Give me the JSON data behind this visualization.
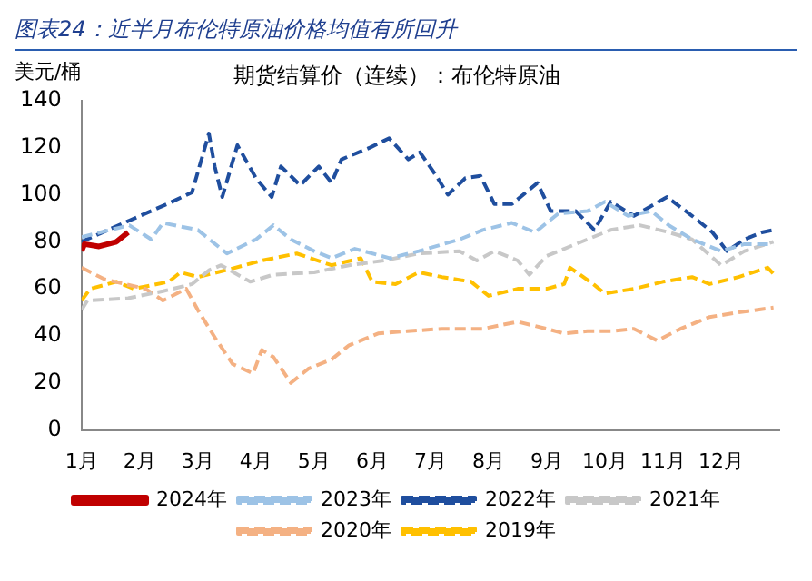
{
  "chart_data": {
    "type": "line",
    "title": "图表24：近半月布伦特原油价格均值有所回升",
    "subtitle": "期货结算价（连续）：布伦特原油",
    "ylabel": "美元/桶",
    "xlim": [
      1,
      13
    ],
    "xticks": [
      {
        "value": 1,
        "label": "1月"
      },
      {
        "value": 2,
        "label": "2月"
      },
      {
        "value": 3,
        "label": "3月"
      },
      {
        "value": 4,
        "label": "4月"
      },
      {
        "value": 5,
        "label": "5月"
      },
      {
        "value": 6,
        "label": "6月"
      },
      {
        "value": 7,
        "label": "7月"
      },
      {
        "value": 8,
        "label": "8月"
      },
      {
        "value": 9,
        "label": "9月"
      },
      {
        "value": 10,
        "label": "10月"
      },
      {
        "value": 11,
        "label": "11月"
      },
      {
        "value": 12,
        "label": "12月"
      }
    ],
    "ylim": [
      0,
      140
    ],
    "yticks": [
      0,
      20,
      40,
      60,
      80,
      100,
      120,
      140
    ],
    "grid": false,
    "legend": "bottom",
    "marker": "none",
    "series": [
      {
        "name": "2024年",
        "color": "#c00000",
        "line_style": "solid",
        "x": [
          1,
          1.05,
          1.3,
          1.6,
          1.8
        ],
        "values": [
          76,
          79,
          78,
          80,
          84
        ]
      },
      {
        "name": "2023年",
        "color": "#9dc3e6",
        "line_style": "dashed",
        "x": [
          1,
          1.82,
          2.2,
          2.4,
          3.0,
          3.2,
          3.5,
          4.0,
          4.3,
          4.6,
          5.0,
          5.3,
          5.7,
          6.3,
          6.8,
          7.5,
          7.9,
          8.4,
          8.8,
          9.2,
          9.7,
          10.0,
          10.4,
          10.8,
          11.1,
          11.5,
          12.0,
          12.4,
          12.9
        ],
        "values": [
          82,
          87,
          81,
          88,
          85,
          81,
          75,
          81,
          87,
          81,
          76,
          73,
          77,
          73,
          76,
          81,
          85,
          88,
          84,
          92,
          93,
          97,
          91,
          93,
          87,
          81,
          76,
          79,
          79
        ]
      },
      {
        "name": "2022年",
        "color": "#1f4e9e",
        "line_style": "dashed",
        "x": [
          1,
          1.82,
          2.47,
          2.9,
          3.19,
          3.29,
          3.42,
          3.68,
          4.0,
          4.27,
          4.43,
          4.76,
          5.08,
          5.3,
          5.47,
          5.96,
          6.29,
          6.62,
          6.82,
          7.1,
          7.3,
          7.6,
          7.86,
          8.1,
          8.4,
          8.84,
          9.07,
          9.5,
          9.82,
          10.1,
          10.5,
          11.07,
          11.5,
          11.85,
          12.1,
          12.4,
          12.7,
          12.9
        ],
        "values": [
          80,
          89,
          96,
          101,
          126,
          112,
          99,
          121,
          107,
          99,
          112,
          104,
          112,
          105,
          115,
          120,
          124,
          115,
          118,
          108,
          100,
          107,
          108,
          96,
          96,
          105,
          93,
          93,
          85,
          97,
          91,
          99,
          91,
          84,
          76,
          81,
          84,
          85
        ]
      },
      {
        "name": "2021年",
        "color": "#c8c8c8",
        "line_style": "dashed",
        "x": [
          1,
          1.1,
          1.8,
          2.4,
          2.9,
          3.2,
          3.4,
          3.9,
          4.3,
          5.0,
          5.6,
          6.2,
          6.8,
          7.5,
          7.8,
          8.1,
          8.5,
          8.7,
          9.0,
          9.7,
          10.1,
          10.6,
          11.1,
          11.5,
          12.0,
          12.4,
          12.9
        ],
        "values": [
          51,
          55,
          56,
          59,
          62,
          68,
          70,
          63,
          66,
          67,
          70,
          72,
          75,
          76,
          72,
          76,
          72,
          66,
          74,
          81,
          85,
          87,
          84,
          81,
          70,
          76,
          80
        ]
      },
      {
        "name": "2020年",
        "color": "#f4b183",
        "line_style": "dashed",
        "x": [
          1,
          1.4,
          2.1,
          2.4,
          2.8,
          3.0,
          3.3,
          3.6,
          3.95,
          4.1,
          4.3,
          4.6,
          4.9,
          5.3,
          5.6,
          6.1,
          6.6,
          7.2,
          7.9,
          8.5,
          9.0,
          9.3,
          9.7,
          10.1,
          10.5,
          10.9,
          11.3,
          11.8,
          12.3,
          12.9
        ],
        "values": [
          69,
          64,
          60,
          55,
          60,
          51,
          39,
          28,
          24,
          34,
          31,
          20,
          26,
          30,
          36,
          41,
          42,
          43,
          43,
          46,
          43,
          41,
          42,
          42,
          43,
          38,
          43,
          48,
          50,
          52
        ]
      },
      {
        "name": "2019年",
        "color": "#ffc000",
        "line_style": "dashed",
        "x": [
          1,
          1.15,
          1.6,
          1.9,
          2.5,
          2.7,
          3.0,
          3.5,
          4.1,
          4.7,
          5.3,
          5.8,
          6.0,
          6.4,
          6.8,
          7.2,
          7.7,
          8.0,
          8.5,
          9.0,
          9.3,
          9.4,
          9.8,
          10.0,
          10.5,
          11.0,
          11.5,
          11.8,
          12.3,
          12.8,
          12.95
        ],
        "values": [
          55,
          60,
          63,
          60,
          63,
          67,
          65,
          68,
          72,
          75,
          70,
          73,
          63,
          62,
          67,
          65,
          63,
          57,
          60,
          60,
          62,
          69,
          62,
          58,
          60,
          63,
          65,
          62,
          65,
          69,
          65
        ]
      }
    ]
  }
}
